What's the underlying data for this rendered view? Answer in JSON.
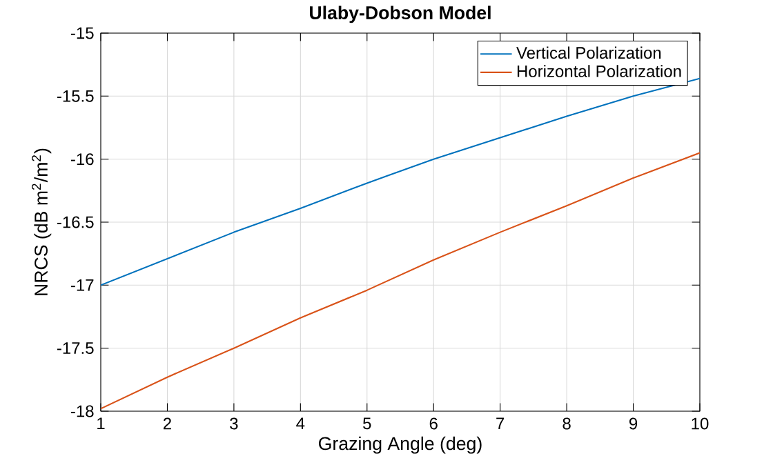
{
  "chart_data": {
    "type": "line",
    "title": "Ulaby-Dobson Model",
    "xlabel": "Grazing Angle (deg)",
    "ylabel": "NRCS (dB m$^{2}$/m$^{2}$)",
    "x": [
      1,
      2,
      3,
      4,
      5,
      6,
      7,
      8,
      9,
      10
    ],
    "series": [
      {
        "name": "Vertical Polarization",
        "color": "#0072bd",
        "values": [
          -17.0,
          -16.79,
          -16.58,
          -16.39,
          -16.19,
          -16.0,
          -15.83,
          -15.66,
          -15.5,
          -15.36
        ]
      },
      {
        "name": "Horizontal Polarization",
        "color": "#d95319",
        "values": [
          -17.98,
          -17.73,
          -17.5,
          -17.26,
          -17.04,
          -16.8,
          -16.58,
          -16.37,
          -16.15,
          -15.95
        ]
      }
    ],
    "xlim": [
      1,
      10
    ],
    "ylim": [
      -18,
      -15
    ],
    "xticks": [
      1,
      2,
      3,
      4,
      5,
      6,
      7,
      8,
      9,
      10
    ],
    "yticks": [
      -18,
      -17.5,
      -17,
      -16.5,
      -16,
      -15.5,
      -15
    ],
    "grid": true,
    "legend": "top right",
    "marker": "none",
    "line_style": "solid"
  }
}
